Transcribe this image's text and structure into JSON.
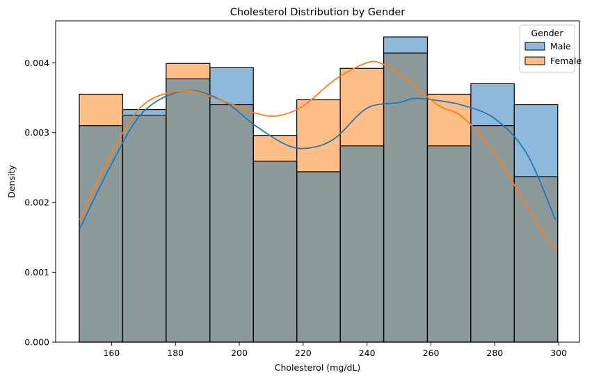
{
  "chart_data": {
    "type": "histogram",
    "title": "Cholesterol Distribution by Gender",
    "xlabel": "Cholesterol (mg/dL)",
    "ylabel": "Density",
    "xlim": [
      142.5,
      306.5
    ],
    "ylim": [
      0,
      0.0046
    ],
    "xticks": [
      160,
      180,
      200,
      220,
      240,
      260,
      280,
      300
    ],
    "yticks": [
      0,
      0.001,
      0.002,
      0.003,
      0.004
    ],
    "ytick_labels": [
      "0.000",
      "0.001",
      "0.002",
      "0.003",
      "0.004"
    ],
    "bin_edges": [
      149.9,
      163.5,
      177.1,
      190.8,
      204.4,
      218.0,
      231.6,
      245.2,
      258.9,
      272.5,
      286.1,
      299.7
    ],
    "legend": {
      "title": "Gender",
      "placement": "top-right"
    },
    "series": [
      {
        "name": "Male",
        "color": "#1f77b4",
        "fill": "#8fb9da",
        "densities": [
          0.0031,
          0.00333,
          0.00377,
          0.00393,
          0.00259,
          0.00244,
          0.00281,
          0.00437,
          0.00281,
          0.0037,
          0.0034
        ],
        "kde": {
          "x": [
            150,
            160,
            170,
            183,
            195,
            205,
            215,
            222,
            230,
            240,
            250,
            255,
            262,
            270,
            280,
            290,
            299
          ],
          "y": [
            0.00162,
            0.00255,
            0.0033,
            0.0036,
            0.00345,
            0.0031,
            0.00282,
            0.00278,
            0.00292,
            0.00335,
            0.00343,
            0.00349,
            0.00346,
            0.00339,
            0.0032,
            0.0027,
            0.00175
          ]
        }
      },
      {
        "name": "Female",
        "color": "#ff7f0e",
        "fill": "#ffbe86",
        "densities": [
          0.00355,
          0.00325,
          0.00399,
          0.0034,
          0.00296,
          0.00347,
          0.00392,
          0.00414,
          0.00355,
          0.0031,
          0.00237
        ],
        "kde": {
          "x": [
            150,
            160,
            170,
            183,
            195,
            205,
            212,
            220,
            230,
            240,
            245,
            252,
            262,
            270,
            280,
            290,
            299
          ],
          "y": [
            0.00175,
            0.0027,
            0.0034,
            0.0036,
            0.00345,
            0.00328,
            0.00324,
            0.00338,
            0.00376,
            0.004,
            0.00398,
            0.00378,
            0.0034,
            0.00322,
            0.0027,
            0.00195,
            0.00131
          ]
        }
      }
    ],
    "overlap_fill": "#8d9a9c"
  }
}
